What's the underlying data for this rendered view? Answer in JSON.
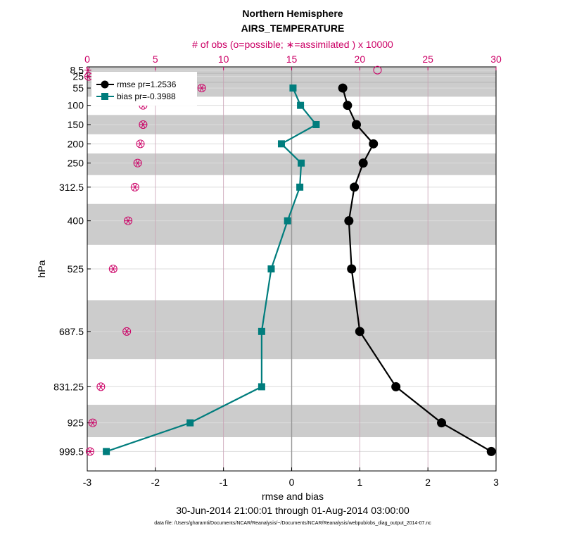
{
  "chart_data": {
    "type": "line",
    "title": "Northern Hemisphere",
    "subtitle": "AIRS_TEMPERATURE",
    "top_axis_label": "# of obs (o=possible; ∗=assimilated ) x 10000",
    "xlabel": "rmse and bias",
    "ylabel": "hPa",
    "date_range": "30-Jun-2014 21:00:01 through 01-Aug-2014 03:00:00",
    "footer": "data file: /Users/gharamti/Documents/NCAR/Reanalysis/~/Documents/NCAR/Reanalysis/webpub/obs_diag_output_2014-07.nc",
    "xlim": [
      -3,
      3
    ],
    "x_ticks": [
      "-3",
      "-2",
      "-1",
      "0",
      "1",
      "2",
      "3"
    ],
    "top_xlim": [
      0,
      30
    ],
    "top_ticks": [
      "0",
      "5",
      "10",
      "15",
      "20",
      "25",
      "30"
    ],
    "levels": [
      "8.5",
      "25",
      "55",
      "100",
      "150",
      "200",
      "250",
      "312.5",
      "400",
      "525",
      "687.5",
      "831.25",
      "925",
      "999.5"
    ],
    "legend": [
      "rmse pr=1.2536",
      "bias pr=-0.3988"
    ],
    "series": [
      {
        "name": "rmse",
        "color": "#000000",
        "values": [
          null,
          null,
          0.75,
          0.82,
          0.95,
          1.2,
          1.05,
          0.92,
          0.84,
          0.88,
          1.0,
          1.53,
          2.2,
          2.93
        ]
      },
      {
        "name": "bias",
        "color": "#007d7d",
        "values": [
          null,
          null,
          0.02,
          0.13,
          0.36,
          -0.15,
          0.14,
          0.12,
          -0.06,
          -0.3,
          -0.44,
          -0.44,
          -1.49,
          -2.72
        ]
      }
    ],
    "obs_possible": [
      21.3,
      0.1,
      8.4,
      4.1,
      4.1,
      3.9,
      3.7,
      3.5,
      3.0,
      1.9,
      2.9,
      1.0,
      0.4,
      0.2
    ],
    "obs_assimilated": [
      0.05,
      0.1,
      8.4,
      4.1,
      4.1,
      3.9,
      3.7,
      3.5,
      3.0,
      1.9,
      2.9,
      1.0,
      0.4,
      0.2
    ],
    "colors": {
      "accent": "#cc0066",
      "shade": "#cccccc",
      "grid": "#dcdcdc",
      "top_grid": "#c8a0b4"
    }
  }
}
